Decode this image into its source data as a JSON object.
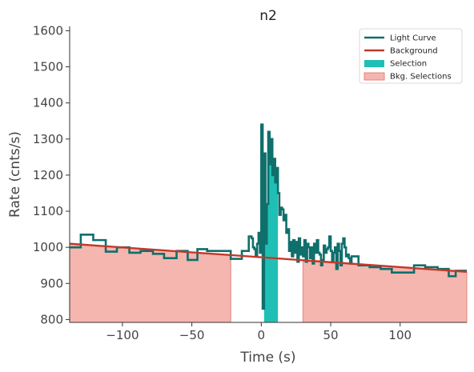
{
  "chart_data": {
    "type": "line",
    "title": "n2",
    "xlabel": "Time (s)",
    "ylabel": "Rate (cnts/s)",
    "xlim": [
      -138,
      148
    ],
    "ylim": [
      792,
      1612
    ],
    "xticks": [
      -100,
      -50,
      0,
      50,
      100
    ],
    "xtick_labels": [
      "−100",
      "−50",
      "0",
      "50",
      "100"
    ],
    "yticks": [
      800,
      900,
      1000,
      1100,
      1200,
      1300,
      1400,
      1500,
      1600
    ],
    "ytick_labels": [
      "800",
      "900",
      "1000",
      "1100",
      "1200",
      "1300",
      "1400",
      "1500",
      "1600"
    ],
    "grid": false,
    "legend_position": "top-right",
    "legend": [
      {
        "label": "Light Curve",
        "kind": "line",
        "color": "#0e6f6b"
      },
      {
        "label": "Background",
        "kind": "line",
        "color": "#c0392b"
      },
      {
        "label": "Selection",
        "kind": "patch",
        "color": "#20bfb5"
      },
      {
        "label": "Bkg. Selections",
        "kind": "patch",
        "color": "#f4b6ae"
      }
    ],
    "colors": {
      "light_curve": "#0e6f6b",
      "background": "#c0392b",
      "selection": "#20bfb5",
      "bkg_fill": "#f4b6ae",
      "bkg_edge": "#e8837a"
    },
    "background_line": {
      "x": [
        -138,
        148
      ],
      "y": [
        1010,
        932
      ]
    },
    "selection": {
      "x_start": 2,
      "x_end": 12
    },
    "bkg_selections": [
      {
        "x_start": -138,
        "x_end": -22
      },
      {
        "x_start": 30,
        "x_end": 148
      }
    ],
    "series": [
      {
        "name": "Light Curve",
        "style": "step-post",
        "x": [
          -138,
          -130,
          -121,
          -112,
          -104,
          -95,
          -87,
          -78,
          -70,
          -61,
          -53,
          -46,
          -39,
          -22,
          -14,
          -9,
          -7,
          -6,
          -5,
          -4,
          -3,
          -2,
          -1,
          0,
          1,
          2,
          3,
          4,
          5,
          6,
          7,
          8,
          9,
          10,
          11,
          12,
          13,
          14,
          15,
          16,
          17,
          18,
          19,
          20,
          21,
          22,
          23,
          24,
          25,
          26,
          27,
          28,
          29,
          30,
          31,
          32,
          33,
          34,
          35,
          36,
          37,
          38,
          39,
          40,
          41,
          42,
          43,
          44,
          45,
          46,
          47,
          48,
          49,
          50,
          51,
          52,
          53,
          54,
          55,
          56,
          57,
          58,
          59,
          60,
          61,
          62,
          63,
          64,
          65,
          70,
          78,
          86,
          94,
          102,
          110,
          118,
          127,
          135,
          140,
          148
        ],
        "y": [
          1000,
          1035,
          1020,
          988,
          1000,
          985,
          990,
          982,
          970,
          990,
          965,
          995,
          990,
          968,
          990,
          1030,
          1025,
          1000,
          995,
          975,
          1010,
          1040,
          985,
          1340,
          830,
          1260,
          1010,
          1120,
          1320,
          1230,
          1300,
          1200,
          1245,
          1180,
          1220,
          1150,
          1090,
          1110,
          1105,
          1075,
          1090,
          1040,
          1050,
          990,
          1015,
          975,
          1020,
          985,
          1015,
          960,
          1025,
          980,
          1000,
          975,
          1020,
          960,
          1010,
          1000,
          970,
          1000,
          955,
          1010,
          985,
          1020,
          985,
          980,
          950,
          965,
          1005,
          985,
          995,
          1000,
          1030,
          990,
          960,
          985,
          1000,
          940,
          1010,
          990,
          950,
          1010,
          1025,
          1000,
          975,
          980,
          970,
          955,
          975,
          950,
          945,
          940,
          930,
          930,
          950,
          945,
          940,
          920,
          935,
          935
        ]
      }
    ]
  }
}
